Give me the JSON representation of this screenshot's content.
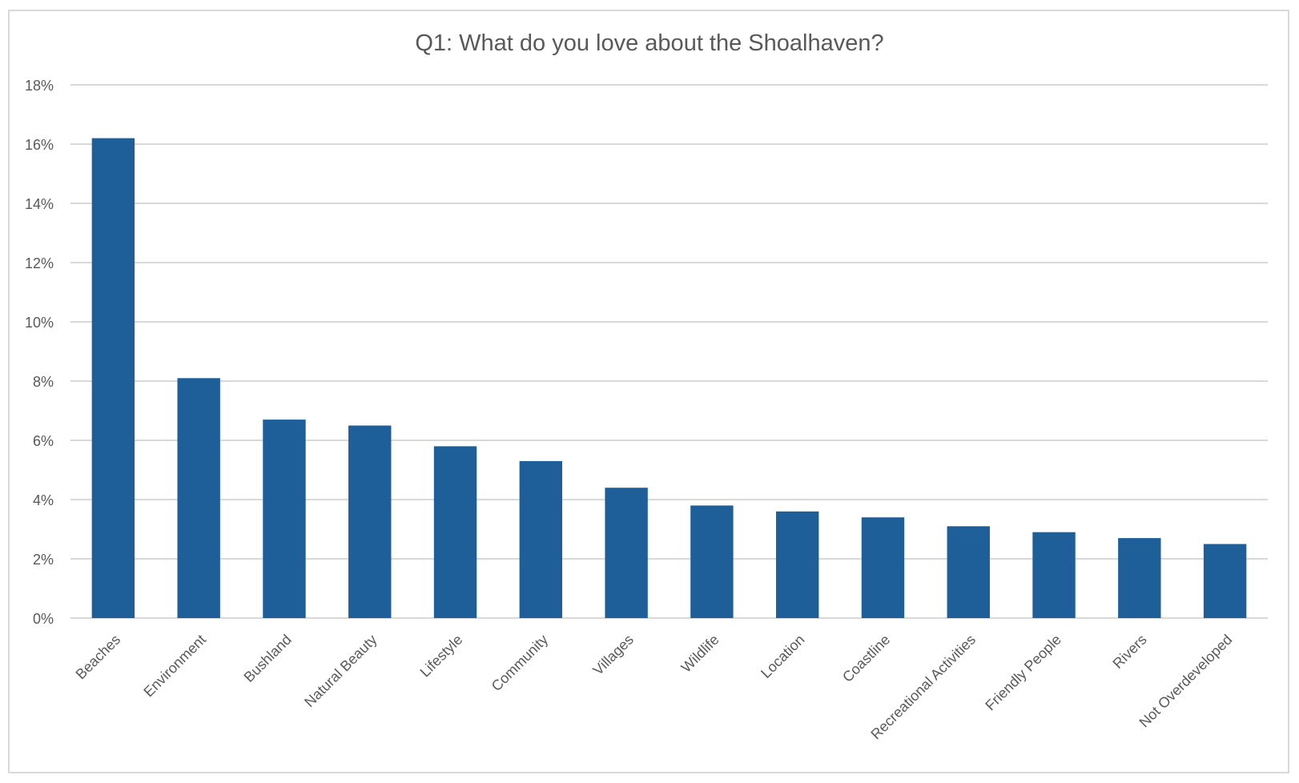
{
  "chart_data": {
    "type": "bar",
    "title": "Q1: What do you love about the Shoalhaven?",
    "categories": [
      "Beaches",
      "Environment",
      "Bushland",
      "Natural Beauty",
      "Lifestyle",
      "Community",
      "Villages",
      "Wildlife",
      "Location",
      "Coastline",
      "Recreational Activities",
      "Friendly People",
      "Rivers",
      "Not Overdeveloped"
    ],
    "values": [
      16.2,
      8.1,
      6.7,
      6.5,
      5.8,
      5.3,
      4.4,
      3.8,
      3.6,
      3.4,
      3.1,
      2.9,
      2.7,
      2.5
    ],
    "ylim": [
      0,
      18
    ],
    "yticks": [
      0,
      2,
      4,
      6,
      8,
      10,
      12,
      14,
      16,
      18
    ],
    "ytick_suffix": "%",
    "xlabel": "",
    "ylabel": "",
    "grid": true,
    "legend": "none",
    "bar_color": "#1f5f99",
    "grid_color": "#d9d9d9"
  }
}
